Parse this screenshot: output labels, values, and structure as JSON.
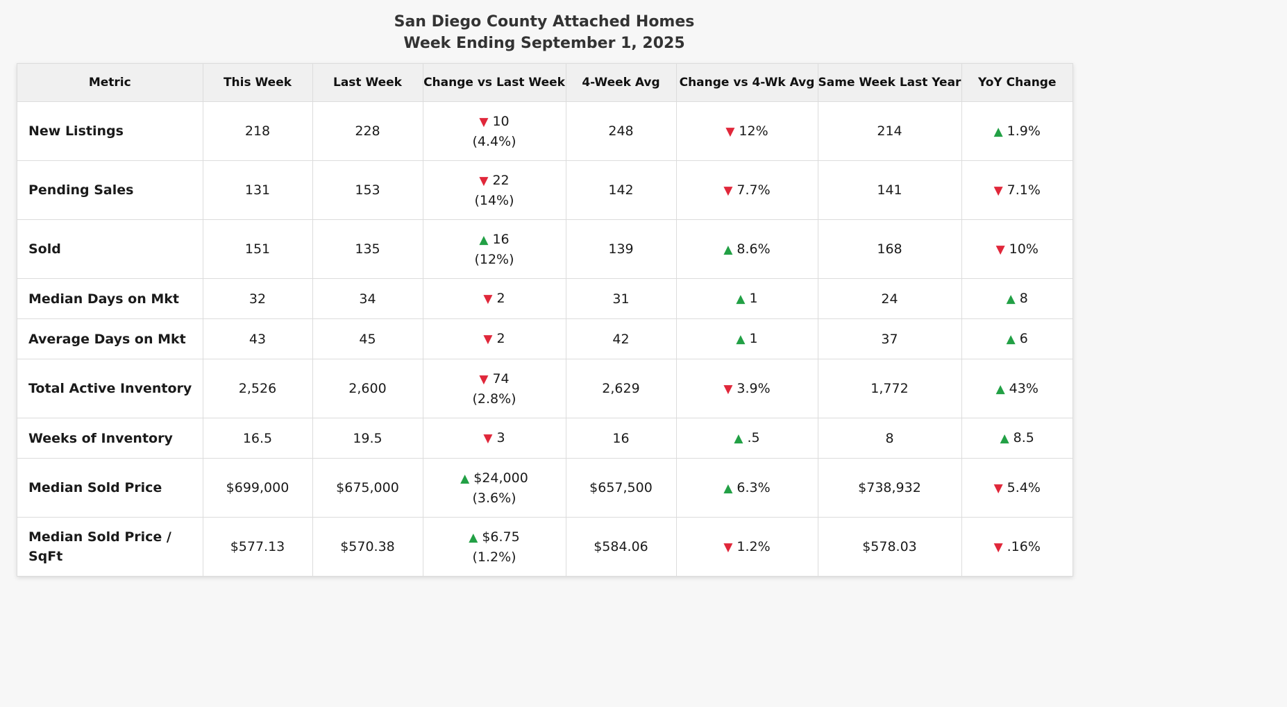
{
  "title": "San Diego County Attached Homes",
  "subtitle": "Week Ending September 1, 2025",
  "colors": {
    "up": "#22a045",
    "down": "#e0273a"
  },
  "columns": [
    "Metric",
    "This Week",
    "Last Week",
    "Change vs Last Week",
    "4-Week Avg",
    "Change vs 4-Wk Avg",
    "Same Week Last Year",
    "YoY Change"
  ],
  "rows": [
    {
      "metric": "New Listings",
      "this_week": "218",
      "last_week": "228",
      "chg_lw": {
        "dir": "down",
        "value": "10",
        "pct": "(4.4%)"
      },
      "avg4": "248",
      "chg_avg": {
        "dir": "down",
        "value": "12%"
      },
      "last_year": "214",
      "yoy": {
        "dir": "up",
        "value": "1.9%"
      }
    },
    {
      "metric": "Pending Sales",
      "this_week": "131",
      "last_week": "153",
      "chg_lw": {
        "dir": "down",
        "value": "22",
        "pct": "(14%)"
      },
      "avg4": "142",
      "chg_avg": {
        "dir": "down",
        "value": "7.7%"
      },
      "last_year": "141",
      "yoy": {
        "dir": "down",
        "value": "7.1%"
      }
    },
    {
      "metric": "Sold",
      "this_week": "151",
      "last_week": "135",
      "chg_lw": {
        "dir": "up",
        "value": "16",
        "pct": "(12%)"
      },
      "avg4": "139",
      "chg_avg": {
        "dir": "up",
        "value": "8.6%"
      },
      "last_year": "168",
      "yoy": {
        "dir": "down",
        "value": "10%"
      }
    },
    {
      "metric": "Median Days on Mkt",
      "this_week": "32",
      "last_week": "34",
      "chg_lw": {
        "dir": "down",
        "value": "2",
        "pct": ""
      },
      "avg4": "31",
      "chg_avg": {
        "dir": "up",
        "value": "1"
      },
      "last_year": "24",
      "yoy": {
        "dir": "up",
        "value": "8"
      }
    },
    {
      "metric": "Average Days on Mkt",
      "this_week": "43",
      "last_week": "45",
      "chg_lw": {
        "dir": "down",
        "value": "2",
        "pct": ""
      },
      "avg4": "42",
      "chg_avg": {
        "dir": "up",
        "value": "1"
      },
      "last_year": "37",
      "yoy": {
        "dir": "up",
        "value": "6"
      }
    },
    {
      "metric": "Total Active Inventory",
      "this_week": "2,526",
      "last_week": "2,600",
      "chg_lw": {
        "dir": "down",
        "value": "74",
        "pct": "(2.8%)"
      },
      "avg4": "2,629",
      "chg_avg": {
        "dir": "down",
        "value": "3.9%"
      },
      "last_year": "1,772",
      "yoy": {
        "dir": "up",
        "value": "43%"
      }
    },
    {
      "metric": "Weeks of Inventory",
      "this_week": "16.5",
      "last_week": "19.5",
      "chg_lw": {
        "dir": "down",
        "value": "3",
        "pct": ""
      },
      "avg4": "16",
      "chg_avg": {
        "dir": "up",
        "value": ".5"
      },
      "last_year": "8",
      "yoy": {
        "dir": "up",
        "value": "8.5"
      }
    },
    {
      "metric": "Median Sold Price",
      "this_week": "$699,000",
      "last_week": "$675,000",
      "chg_lw": {
        "dir": "up",
        "value": "$24,000",
        "pct": "(3.6%)"
      },
      "avg4": "$657,500",
      "chg_avg": {
        "dir": "up",
        "value": "6.3%"
      },
      "last_year": "$738,932",
      "yoy": {
        "dir": "down",
        "value": "5.4%"
      }
    },
    {
      "metric": "Median Sold Price / SqFt",
      "this_week": "$577.13",
      "last_week": "$570.38",
      "chg_lw": {
        "dir": "up",
        "value": "$6.75",
        "pct": "(1.2%)"
      },
      "avg4": "$584.06",
      "chg_avg": {
        "dir": "down",
        "value": "1.2%"
      },
      "last_year": "$578.03",
      "yoy": {
        "dir": "down",
        "value": ".16%"
      }
    }
  ]
}
